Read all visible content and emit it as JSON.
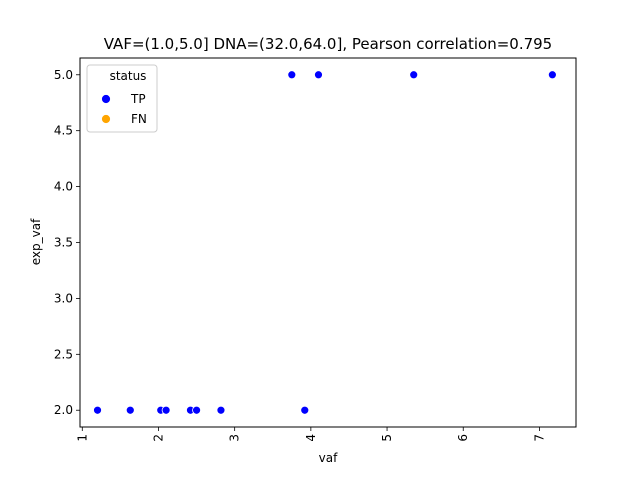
{
  "chart_data": {
    "type": "scatter",
    "title": "VAF=(1.0,5.0] DNA=(32.0,64.0], Pearson correlation=0.795",
    "xlabel": "vaf",
    "ylabel": "exp_vaf",
    "xlim": [
      0.97,
      7.48
    ],
    "ylim": [
      1.85,
      5.15
    ],
    "x_ticks": [
      1,
      2,
      3,
      4,
      5,
      6,
      7
    ],
    "y_ticks": [
      2.0,
      2.5,
      3.0,
      3.5,
      4.0,
      4.5,
      5.0
    ],
    "x_tick_labels": [
      "1",
      "2",
      "3",
      "4",
      "5",
      "6",
      "7"
    ],
    "y_tick_labels": [
      "2.0",
      "2.5",
      "3.0",
      "3.5",
      "4.0",
      "4.5",
      "5.0"
    ],
    "grid": false,
    "legend": {
      "title": "status",
      "placement": "top-left",
      "entries": [
        {
          "label": "TP",
          "color": "#0000ff"
        },
        {
          "label": "FN",
          "color": "#ffa500"
        }
      ]
    },
    "series": [
      {
        "name": "TP",
        "color": "#0000ff",
        "points": [
          {
            "x": 1.2,
            "y": 2.0
          },
          {
            "x": 1.63,
            "y": 2.0
          },
          {
            "x": 2.03,
            "y": 2.0
          },
          {
            "x": 2.1,
            "y": 2.0
          },
          {
            "x": 2.42,
            "y": 2.0
          },
          {
            "x": 2.5,
            "y": 2.0
          },
          {
            "x": 2.82,
            "y": 2.0
          },
          {
            "x": 3.92,
            "y": 2.0
          },
          {
            "x": 3.75,
            "y": 5.0
          },
          {
            "x": 4.1,
            "y": 5.0
          },
          {
            "x": 5.35,
            "y": 5.0
          },
          {
            "x": 7.17,
            "y": 5.0
          }
        ]
      },
      {
        "name": "FN",
        "color": "#ffa500",
        "points": []
      }
    ]
  }
}
